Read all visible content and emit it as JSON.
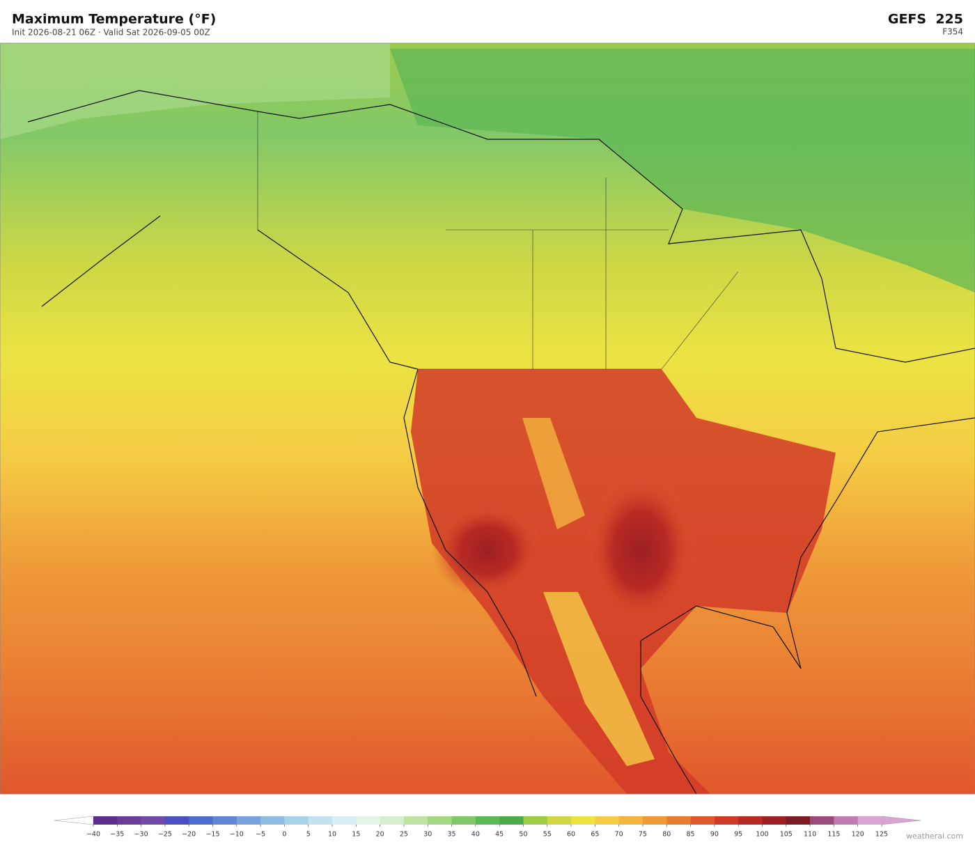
{
  "header": {
    "title": "Maximum Temperature  (°F)",
    "subtitle": "Init 2026-08-21 06Z   ·   Valid Sat 2026-09-05 00Z",
    "model": "GEFS  225",
    "forecast_hour": "F354"
  },
  "colorbar": {
    "ticks": [
      {
        "value": -40,
        "label": "−40"
      },
      {
        "value": -35,
        "label": "−35"
      },
      {
        "value": -30,
        "label": "−30"
      },
      {
        "value": -25,
        "label": "−25"
      },
      {
        "value": -20,
        "label": "−20"
      },
      {
        "value": -15,
        "label": "−15"
      },
      {
        "value": -10,
        "label": "−10"
      },
      {
        "value": -5,
        "label": "−5"
      },
      0,
      5,
      10,
      15,
      20,
      25,
      30,
      35,
      40,
      45,
      50,
      55,
      60,
      65,
      70,
      75,
      80,
      85,
      90,
      95,
      100,
      105,
      110,
      115,
      120,
      125
    ],
    "colors": [
      "#5b2d8e",
      "#6a3d9a",
      "#6f4aa8",
      "#4a4fc2",
      "#4e6bd0",
      "#5f87d6",
      "#77a2dc",
      "#8fbde3",
      "#a8d1ea",
      "#c3e2ef",
      "#d9eef2",
      "#e6f4e6",
      "#d5eecb",
      "#bfe3a3",
      "#a2d784",
      "#82c869",
      "#5cb756",
      "#4aab4a",
      "#9ccb4a",
      "#cfd844",
      "#ece343",
      "#f5cc45",
      "#f2b33f",
      "#ee9a38",
      "#e97c33",
      "#e0572c",
      "#d13a28",
      "#b82a24",
      "#9c1f22",
      "#7b1b22",
      "#9b4a7c",
      "#c07bb0",
      "#d9a3d2"
    ],
    "under_color": "#ffffff",
    "over_color": "#d9a3d2"
  },
  "watermark": "weatherai.com"
}
